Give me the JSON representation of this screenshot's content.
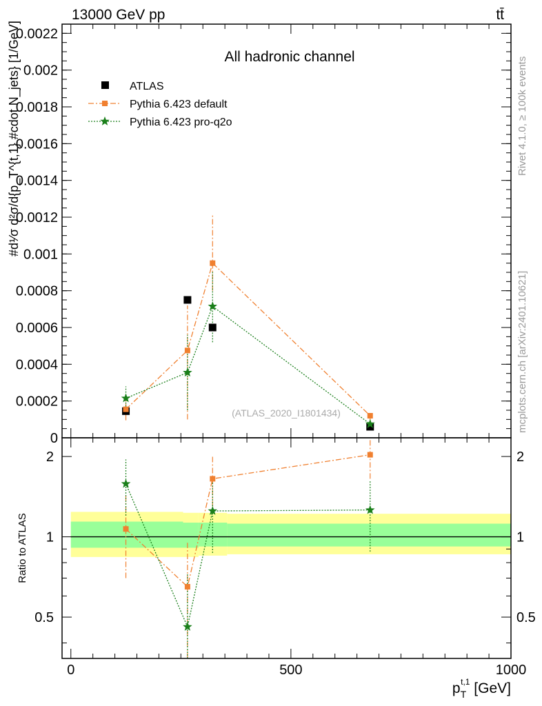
{
  "header": {
    "left": "13000 GeV pp",
    "right": "tt̄"
  },
  "side_texts": {
    "rivet": "Rivet 4.1.0, ≥ 100k events",
    "mcplots": "mcplots.cern.ch [arXiv:2401.10621]"
  },
  "chart_data": [
    {
      "id": "main",
      "type": "scatter",
      "title": "All hadronic channel",
      "watermark": "(ATLAS_2020_I1801434)",
      "ylabel": "#d^{2}\\sigma/#dp_{T}^{t,1} #d N_{jets}  ·  1/σ dσ/dp_{T}^{t,1} [1/GeV]",
      "ylabel_display": "#d¹⁄σ d²σ/d{p_T^{t,1} #cdot N_jets} [1/GeV]",
      "xlim": [
        -20,
        1000
      ],
      "ylim": [
        0,
        0.00225
      ],
      "yticks": [
        0,
        0.0002,
        0.0004,
        0.0006,
        0.0008,
        0.001,
        0.0012,
        0.0014,
        0.0016,
        0.0018,
        0.002,
        0.0022
      ],
      "ytick_labels": [
        "0",
        "0.0002",
        "0.0004",
        "0.0006",
        "0.0008",
        "0.001",
        "0.0012",
        "0.0014",
        "0.0016",
        "0.0018",
        "0.002",
        "0.0022"
      ],
      "legend_position": "top-left",
      "series": [
        {
          "name": "ATLAS",
          "style": "data",
          "color": "#000000",
          "x": [
            125,
            265,
            322,
            680
          ],
          "y": [
            0.000145,
            0.00075,
            0.0006,
            6e-05
          ]
        },
        {
          "name": "Pythia 6.423 default",
          "style": "dashdot",
          "color": "#f08030",
          "x": [
            125,
            265,
            322,
            680
          ],
          "y": [
            0.000155,
            0.000475,
            0.00095,
            0.00012
          ],
          "err_lo": [
            9.5e-05,
            0.0001,
            0.0008,
            9e-05
          ],
          "err_hi": [
            0.000215,
            0.00072,
            0.00121,
            0.00013
          ]
        },
        {
          "name": "Pythia 6.423 pro-q2o",
          "style": "dotted",
          "color": "#1a7f1a",
          "x": [
            125,
            265,
            322,
            680
          ],
          "y": [
            0.000215,
            0.000355,
            0.000715,
            7.5e-05
          ],
          "err_lo": [
            0.000155,
            0.00015,
            0.00052,
            6e-05
          ],
          "err_hi": [
            0.00028,
            0.00056,
            0.00091,
            9e-05
          ]
        }
      ]
    },
    {
      "id": "ratio",
      "type": "scatter",
      "ylabel": "Ratio to ATLAS",
      "xlabel": "p_T^{t,1} [GeV]",
      "xlabel_main": "p",
      "xlabel_sub": "T",
      "xlabel_sup": "t,1",
      "xlabel_unit": " [GeV]",
      "xlim": [
        -20,
        1000
      ],
      "ylim": [
        0.35,
        2.35
      ],
      "xticks": [
        0,
        500,
        1000
      ],
      "xtick_labels": [
        "0",
        "500",
        "1000"
      ],
      "yticks": [
        0.5,
        1,
        2
      ],
      "ytick_labels": [
        "0.5",
        "1",
        "2"
      ],
      "bands": [
        {
          "name": "stat+syst",
          "color": "#ffff99",
          "segments": [
            {
              "x0": 0,
              "x1": 255,
              "lo": 0.84,
              "hi": 1.24
            },
            {
              "x0": 255,
              "x1": 290,
              "lo": 0.84,
              "hi": 1.23
            },
            {
              "x0": 290,
              "x1": 355,
              "lo": 0.85,
              "hi": 1.23
            },
            {
              "x0": 355,
              "x1": 1000,
              "lo": 0.86,
              "hi": 1.22
            }
          ]
        },
        {
          "name": "stat",
          "color": "#99ff99",
          "segments": [
            {
              "x0": 0,
              "x1": 255,
              "lo": 0.91,
              "hi": 1.14
            },
            {
              "x0": 255,
              "x1": 290,
              "lo": 0.91,
              "hi": 1.13
            },
            {
              "x0": 290,
              "x1": 355,
              "lo": 0.92,
              "hi": 1.13
            },
            {
              "x0": 355,
              "x1": 1000,
              "lo": 0.92,
              "hi": 1.12
            }
          ]
        }
      ],
      "series": [
        {
          "name": "Pythia 6.423 default",
          "style": "dashdot",
          "color": "#f08030",
          "x": [
            125,
            265,
            322,
            680
          ],
          "y": [
            1.07,
            0.65,
            1.65,
            2.03
          ],
          "err_lo": [
            0.7,
            0.35,
            1.3,
            1.65
          ],
          "err_hi": [
            1.45,
            0.95,
            2.0,
            2.35
          ]
        },
        {
          "name": "Pythia 6.423 pro-q2o",
          "style": "dotted",
          "color": "#1a7f1a",
          "x": [
            125,
            265,
            322,
            680
          ],
          "y": [
            1.58,
            0.46,
            1.25,
            1.26
          ],
          "err_lo": [
            1.2,
            0.35,
            0.87,
            0.88
          ],
          "err_hi": [
            1.95,
            0.73,
            1.6,
            1.63
          ]
        }
      ]
    }
  ]
}
